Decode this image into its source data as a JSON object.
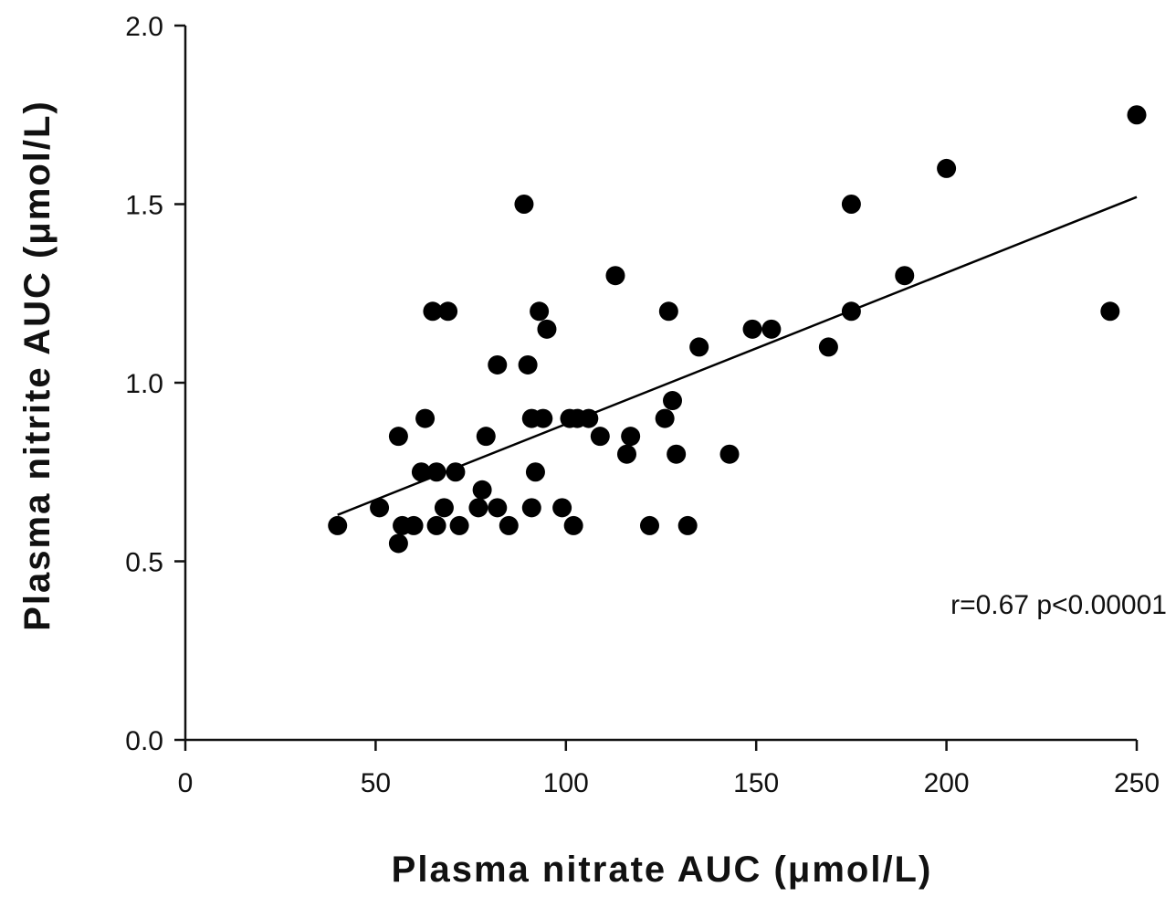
{
  "chart_data": {
    "type": "scatter",
    "title": "",
    "xlabel": "Plasma nitrate AUC (μmol/L)",
    "ylabel": "Plasma nitrite AUC (μmol/L)",
    "xlim": [
      0,
      250
    ],
    "ylim": [
      0.0,
      2.0
    ],
    "xticks": [
      0,
      50,
      100,
      150,
      200,
      250
    ],
    "xtick_labels": [
      "0",
      "50",
      "100",
      "150",
      "200",
      "250"
    ],
    "yticks": [
      0.0,
      0.5,
      1.0,
      1.5,
      2.0
    ],
    "ytick_labels": [
      "0.0",
      "0.5",
      "1.0",
      "1.5",
      "2.0"
    ],
    "grid": false,
    "annotation": "r=0.67  p<0.00001",
    "regression_line": {
      "x": [
        40,
        250
      ],
      "y": [
        0.63,
        1.52
      ]
    },
    "points": [
      {
        "x": 40,
        "y": 0.6
      },
      {
        "x": 51,
        "y": 0.65
      },
      {
        "x": 56,
        "y": 0.55
      },
      {
        "x": 56,
        "y": 0.85
      },
      {
        "x": 57,
        "y": 0.6
      },
      {
        "x": 60,
        "y": 0.6
      },
      {
        "x": 62,
        "y": 0.75
      },
      {
        "x": 63,
        "y": 0.9
      },
      {
        "x": 65,
        "y": 1.2
      },
      {
        "x": 66,
        "y": 0.75
      },
      {
        "x": 66,
        "y": 0.6
      },
      {
        "x": 68,
        "y": 0.65
      },
      {
        "x": 69,
        "y": 1.2
      },
      {
        "x": 71,
        "y": 0.75
      },
      {
        "x": 72,
        "y": 0.6
      },
      {
        "x": 77,
        "y": 0.65
      },
      {
        "x": 78,
        "y": 0.7
      },
      {
        "x": 79,
        "y": 0.85
      },
      {
        "x": 82,
        "y": 0.65
      },
      {
        "x": 82,
        "y": 1.05
      },
      {
        "x": 85,
        "y": 0.6
      },
      {
        "x": 89,
        "y": 1.5
      },
      {
        "x": 90,
        "y": 1.05
      },
      {
        "x": 91,
        "y": 0.9
      },
      {
        "x": 91,
        "y": 0.65
      },
      {
        "x": 92,
        "y": 0.75
      },
      {
        "x": 93,
        "y": 1.2
      },
      {
        "x": 94,
        "y": 0.9
      },
      {
        "x": 95,
        "y": 1.15
      },
      {
        "x": 99,
        "y": 0.65
      },
      {
        "x": 101,
        "y": 0.9
      },
      {
        "x": 102,
        "y": 0.6
      },
      {
        "x": 103,
        "y": 0.9
      },
      {
        "x": 106,
        "y": 0.9
      },
      {
        "x": 109,
        "y": 0.85
      },
      {
        "x": 113,
        "y": 1.3
      },
      {
        "x": 116,
        "y": 0.8
      },
      {
        "x": 117,
        "y": 0.85
      },
      {
        "x": 122,
        "y": 0.6
      },
      {
        "x": 126,
        "y": 0.9
      },
      {
        "x": 127,
        "y": 1.2
      },
      {
        "x": 128,
        "y": 0.95
      },
      {
        "x": 129,
        "y": 0.8
      },
      {
        "x": 132,
        "y": 0.6
      },
      {
        "x": 135,
        "y": 1.1
      },
      {
        "x": 143,
        "y": 0.8
      },
      {
        "x": 149,
        "y": 1.15
      },
      {
        "x": 154,
        "y": 1.15
      },
      {
        "x": 169,
        "y": 1.1
      },
      {
        "x": 175,
        "y": 1.2
      },
      {
        "x": 175,
        "y": 1.5
      },
      {
        "x": 189,
        "y": 1.3
      },
      {
        "x": 200,
        "y": 1.6
      },
      {
        "x": 243,
        "y": 1.2
      },
      {
        "x": 250,
        "y": 1.75
      }
    ],
    "colors": {
      "marker": "#000000",
      "axis": "#111111",
      "line": "#000000",
      "background": "#ffffff"
    }
  }
}
